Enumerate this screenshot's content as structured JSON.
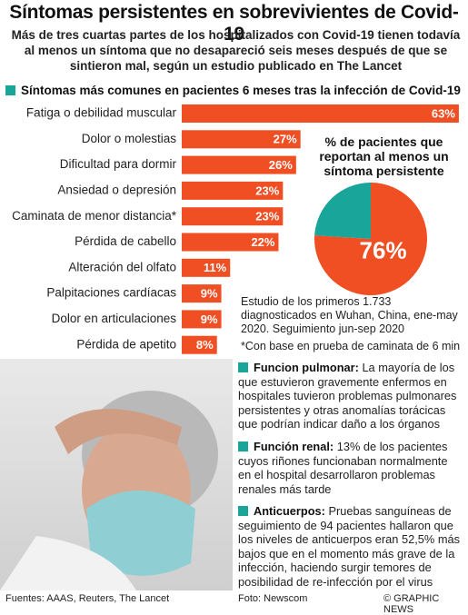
{
  "header": {
    "title": "Síntomas persistentes en sobrevivientes de Covid-19",
    "subtitle": "Más de tres cuartas partes de los hospitalizados con Covid-19 tienen todavía al menos un síntoma que no desapareció seis meses después de que se sintieron mal, según un estudio publicado en The Lancet"
  },
  "chart_data": [
    {
      "type": "bar",
      "orientation": "horizontal",
      "title": "Síntomas más comunes en pacientes 6 meses tras la infección de Covid-19",
      "categories": [
        "Fatiga o debilidad muscular",
        "Dolor o molestias",
        "Dificultad para dormir",
        "Ansiedad o depresión",
        "Caminata de menor distancia*",
        "Pérdida de cabello",
        "Alteración del olfato",
        "Palpitaciones cardíacas",
        "Dolor en articulaciones",
        "Pérdida de apetito"
      ],
      "values": [
        63,
        27,
        26,
        23,
        23,
        22,
        11,
        9,
        9,
        8
      ],
      "value_labels": [
        "63%",
        "27%",
        "26%",
        "23%",
        "23%",
        "22%",
        "11%",
        "9%",
        "9%",
        "8%"
      ],
      "color": "#f04e23"
    },
    {
      "type": "pie",
      "title": "% de pacientes que reportan al menos un síntoma persistente",
      "values": [
        76,
        24
      ],
      "value_labels": [
        "76%",
        null
      ],
      "colors": [
        "#f04e23",
        "#1aa59a"
      ]
    }
  ],
  "notes": {
    "study": "Estudio de los primeros 1.733 diagnosticados en Wuhan, China, ene-may 2020. Seguimiento jun-sep 2020",
    "footnote": "*Con base en prueba de caminata de 6 min"
  },
  "sections": [
    {
      "heading": "Funcion pulmonar:",
      "text": "La mayoría de los que estuvieron gravemente enfermos en hospitales tuvieron problemas pulmonares persistentes y otras anomalías torácicas que podrían indicar daño a los órganos"
    },
    {
      "heading": "Función renal:",
      "text": "13% de los pacientes cuyos riñones funcionaban normalmente en el hospital desarrollaron problemas renales más tarde"
    },
    {
      "heading": "Anticuerpos:",
      "text": "Pruebas sanguíneas de seguimiento de 94 pacientes hallaron que los niveles de anticuerpos eran 52,5% más bajos que en el momento más grave de la infección, haciendo surgir temores de posibilidad de re-infección por el virus"
    }
  ],
  "footer": {
    "sources": "Fuentes: AAAS, Reuters, The Lancet",
    "photo": "Foto: Newscom",
    "brand": "© GRAPHIC NEWS"
  }
}
